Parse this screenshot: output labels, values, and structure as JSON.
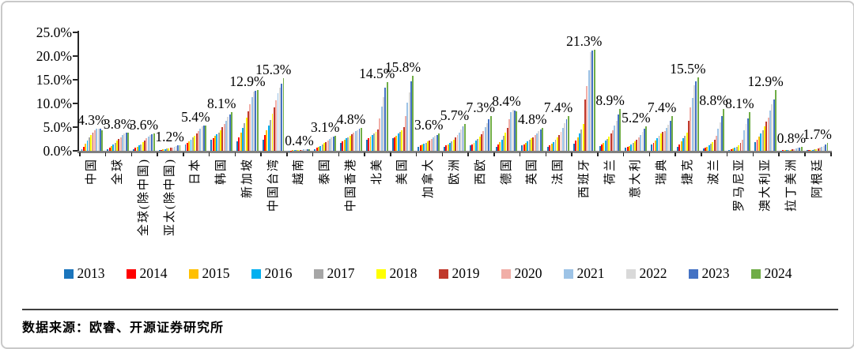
{
  "source_note": "数据来源：欧睿、开源证券研究所",
  "chart_data": {
    "type": "bar",
    "title": "",
    "xlabel": "",
    "ylabel": "",
    "ylim": [
      0,
      25
    ],
    "grid": false,
    "legend_position": "bottom",
    "y_ticks": [
      {
        "label": "0.0%",
        "value": 0
      },
      {
        "label": "5.0%",
        "value": 5
      },
      {
        "label": "10.0%",
        "value": 10
      },
      {
        "label": "15.0%",
        "value": 15
      },
      {
        "label": "20.0%",
        "value": 20
      },
      {
        "label": "25.0%",
        "value": 25
      }
    ],
    "years": [
      {
        "name": "2013",
        "color": "#1B75BC"
      },
      {
        "name": "2014",
        "color": "#FF0000"
      },
      {
        "name": "2015",
        "color": "#FFC000"
      },
      {
        "name": "2016",
        "color": "#00B0F0"
      },
      {
        "name": "2017",
        "color": "#A6A6A6"
      },
      {
        "name": "2018",
        "color": "#FFFF00"
      },
      {
        "name": "2019",
        "color": "#C0392B"
      },
      {
        "name": "2020",
        "color": "#F1AEA7"
      },
      {
        "name": "2021",
        "color": "#9DC3E6"
      },
      {
        "name": "2022",
        "color": "#D9D9D9"
      },
      {
        "name": "2023",
        "color": "#4472C4"
      },
      {
        "name": "2024",
        "color": "#70AD47"
      }
    ],
    "groups": [
      {
        "category": "中国",
        "peak_label": "4.3%",
        "values": [
          0.3,
          0.8,
          1.5,
          2.2,
          2.8,
          3.3,
          3.8,
          4.3,
          4.6,
          4.7,
          4.6,
          4.3
        ]
      },
      {
        "category": "全球",
        "peak_label": "3.8%",
        "values": [
          0.4,
          0.7,
          1.0,
          1.3,
          1.7,
          2.1,
          2.5,
          2.9,
          3.3,
          3.6,
          3.8,
          3.8
        ]
      },
      {
        "category": "全球(除中国)",
        "peak_label": "3.6%",
        "values": [
          0.4,
          0.6,
          0.9,
          1.1,
          1.4,
          1.8,
          2.2,
          2.6,
          3.0,
          3.3,
          3.5,
          3.6
        ]
      },
      {
        "category": "亚太(除中国)",
        "peak_label": "1.2%",
        "values": [
          0.15,
          0.2,
          0.3,
          0.35,
          0.45,
          0.55,
          0.65,
          0.75,
          0.9,
          1.0,
          1.1,
          1.2
        ]
      },
      {
        "category": "日本",
        "peak_label": "5.4%",
        "values": [
          1.4,
          1.7,
          2.0,
          2.4,
          2.8,
          3.2,
          3.7,
          4.2,
          4.7,
          5.1,
          5.4,
          5.4
        ]
      },
      {
        "category": "韩国",
        "peak_label": "8.1%",
        "values": [
          2.4,
          2.7,
          3.1,
          3.5,
          3.9,
          4.4,
          5.0,
          5.7,
          6.4,
          7.1,
          7.6,
          8.1
        ]
      },
      {
        "category": "新加坡",
        "peak_label": "12.9%",
        "values": [
          2.0,
          2.9,
          3.8,
          4.8,
          5.8,
          7.0,
          8.3,
          9.8,
          11.3,
          12.5,
          12.7,
          12.9
        ]
      },
      {
        "category": "中国台湾",
        "peak_label": "15.3%",
        "values": [
          2.4,
          3.3,
          4.3,
          5.4,
          6.5,
          7.8,
          9.2,
          10.7,
          12.2,
          13.4,
          14.1,
          15.3
        ]
      },
      {
        "category": "越南",
        "peak_label": "0.4%",
        "values": [
          0.05,
          0.05,
          0.1,
          0.1,
          0.15,
          0.15,
          0.2,
          0.25,
          0.3,
          0.3,
          0.35,
          0.4
        ]
      },
      {
        "category": "泰国",
        "peak_label": "3.1%",
        "values": [
          0.4,
          0.6,
          0.8,
          1.0,
          1.3,
          1.6,
          1.9,
          2.2,
          2.5,
          2.8,
          3.0,
          3.1
        ]
      },
      {
        "category": "中国香港",
        "peak_label": "4.8%",
        "values": [
          1.7,
          2.0,
          2.3,
          2.6,
          2.9,
          3.2,
          3.5,
          3.8,
          4.1,
          4.4,
          4.6,
          4.8
        ]
      },
      {
        "category": "北美",
        "peak_label": "14.5%",
        "values": [
          2.4,
          2.7,
          3.0,
          3.3,
          3.6,
          4.0,
          4.5,
          6.8,
          9.4,
          11.4,
          13.4,
          14.5
        ]
      },
      {
        "category": "美国",
        "peak_label": "15.8%",
        "values": [
          2.6,
          2.9,
          3.2,
          3.6,
          4.0,
          4.4,
          5.0,
          7.4,
          10.2,
          12.4,
          14.6,
          15.8
        ]
      },
      {
        "category": "加拿大",
        "peak_label": "3.6%",
        "values": [
          0.9,
          1.1,
          1.3,
          1.5,
          1.7,
          2.0,
          2.2,
          2.5,
          2.8,
          3.1,
          3.4,
          3.6
        ]
      },
      {
        "category": "欧洲",
        "peak_label": "5.7%",
        "values": [
          0.9,
          1.1,
          1.4,
          1.7,
          2.0,
          2.4,
          2.8,
          3.3,
          3.9,
          4.5,
          5.1,
          5.7
        ]
      },
      {
        "category": "西欧",
        "peak_label": "7.3%",
        "values": [
          1.1,
          1.4,
          1.7,
          2.1,
          2.5,
          3.0,
          3.5,
          4.2,
          5.0,
          5.8,
          6.6,
          7.3
        ]
      },
      {
        "category": "德国",
        "peak_label": "8.4%",
        "values": [
          0.9,
          1.3,
          1.8,
          2.4,
          3.1,
          3.9,
          4.8,
          6.6,
          8.2,
          8.6,
          8.5,
          8.4
        ]
      },
      {
        "category": "英国",
        "peak_label": "4.8%",
        "values": [
          1.2,
          1.4,
          1.7,
          2.0,
          2.3,
          2.6,
          2.9,
          3.3,
          3.7,
          4.1,
          4.5,
          4.8
        ]
      },
      {
        "category": "法国",
        "peak_label": "7.4%",
        "values": [
          0.9,
          1.2,
          1.5,
          1.9,
          2.3,
          2.8,
          3.3,
          4.0,
          4.9,
          5.8,
          6.7,
          7.4
        ]
      },
      {
        "category": "西班牙",
        "peak_label": "21.3%",
        "values": [
          1.5,
          2.1,
          2.8,
          3.6,
          4.5,
          5.6,
          10.8,
          13.7,
          17.0,
          20.9,
          21.1,
          21.3
        ]
      },
      {
        "category": "荷兰",
        "peak_label": "8.9%",
        "values": [
          1.0,
          1.3,
          1.7,
          2.1,
          2.5,
          3.0,
          3.6,
          4.3,
          5.3,
          6.4,
          7.6,
          8.9
        ]
      },
      {
        "category": "意大利",
        "peak_label": "5.2%",
        "values": [
          0.6,
          0.8,
          1.0,
          1.3,
          1.6,
          2.0,
          2.4,
          2.9,
          3.4,
          4.0,
          4.6,
          5.2
        ]
      },
      {
        "category": "瑞典",
        "peak_label": "7.4%",
        "values": [
          1.3,
          1.7,
          2.2,
          2.7,
          3.2,
          3.7,
          4.0,
          4.2,
          4.8,
          5.5,
          6.4,
          7.4
        ]
      },
      {
        "category": "捷克",
        "peak_label": "15.5%",
        "values": [
          0.9,
          1.4,
          2.0,
          2.6,
          3.2,
          3.9,
          6.3,
          9.2,
          11.2,
          13.8,
          14.7,
          15.5
        ]
      },
      {
        "category": "波兰",
        "peak_label": "8.8%",
        "values": [
          0.5,
          0.7,
          0.9,
          1.2,
          1.5,
          1.9,
          2.4,
          3.2,
          4.6,
          6.0,
          7.4,
          8.8
        ]
      },
      {
        "category": "罗马尼亚",
        "peak_label": "8.1%",
        "values": [
          0.2,
          0.3,
          0.5,
          0.7,
          0.9,
          1.2,
          1.6,
          2.4,
          4.3,
          5.6,
          6.9,
          8.1
        ]
      },
      {
        "category": "澳大利亚",
        "peak_label": "12.9%",
        "values": [
          1.9,
          2.4,
          3.0,
          3.7,
          4.4,
          5.2,
          6.1,
          7.0,
          8.5,
          9.8,
          10.9,
          12.9
        ]
      },
      {
        "category": "拉丁美洲",
        "peak_label": "0.8%",
        "values": [
          0.05,
          0.1,
          0.1,
          0.15,
          0.2,
          0.25,
          0.3,
          0.4,
          0.5,
          0.6,
          0.7,
          0.8
        ]
      },
      {
        "category": "阿根廷",
        "peak_label": "1.7%",
        "values": [
          0.1,
          0.1,
          0.15,
          0.2,
          0.3,
          0.4,
          0.5,
          0.6,
          0.8,
          1.0,
          1.3,
          1.7
        ]
      }
    ]
  }
}
